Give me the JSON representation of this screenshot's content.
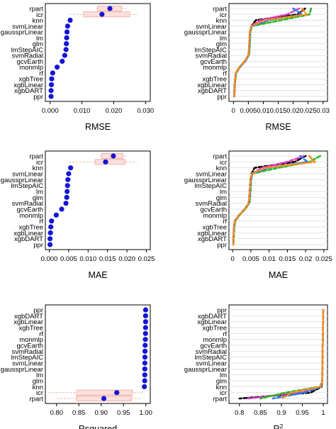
{
  "chart_data": [
    {
      "type": "scatter",
      "xlabel": "RMSE",
      "xlim": [
        -0.0015,
        0.0315
      ],
      "xticks": [
        0,
        0.01,
        0.02,
        0.03
      ],
      "xtick_labels": [
        "0.000",
        "0.010",
        "0.020",
        "0.030"
      ],
      "categories": [
        "rpart",
        "icr",
        "knn",
        "svmLinear",
        "gaussprLinear",
        "lm",
        "glm",
        "lmStepAIC",
        "svmRadial",
        "gcvEarth",
        "monmlp",
        "rf",
        "xgbTree",
        "xgbLinear",
        "xgbDART",
        "ppr"
      ],
      "values": [
        0.0188,
        0.0163,
        0.0063,
        0.0055,
        0.0053,
        0.0052,
        0.0051,
        0.005,
        0.0046,
        0.0038,
        0.0022,
        0.0008,
        0.0005,
        0.0004,
        0.0003,
        0.0003
      ],
      "interval_low": [
        0.015,
        0.0105,
        null,
        null,
        null,
        null,
        null,
        null,
        null,
        null,
        null,
        null,
        null,
        null,
        null,
        null
      ],
      "interval_high": [
        0.0225,
        0.025,
        null,
        null,
        null,
        null,
        null,
        null,
        null,
        null,
        null,
        null,
        null,
        null,
        null,
        null
      ],
      "whisker_low": [
        0.0145,
        0.006,
        null,
        null,
        null,
        null,
        null,
        null,
        null,
        null,
        null,
        null,
        null,
        null,
        null,
        null
      ],
      "whisker_high": [
        0.024,
        0.0275,
        null,
        null,
        null,
        null,
        null,
        null,
        null,
        null,
        null,
        null,
        null,
        null,
        null,
        null
      ],
      "point_color": "#1515d5",
      "box_color": "#f4b0a8"
    },
    {
      "type": "line",
      "xlabel": "RMSE",
      "xlim": [
        -0.0015,
        0.0315
      ],
      "xticks": [
        0,
        0.005,
        0.01,
        0.015,
        0.02,
        0.025,
        0.03
      ],
      "xtick_labels": [
        "0",
        "0.005",
        "0.01",
        "0.015",
        "0.02",
        "0.025",
        "0.03"
      ],
      "categories": [
        "rpart",
        "icr",
        "knn",
        "svmLinear",
        "gaussprLinear",
        "lm",
        "glm",
        "lmStepAIC",
        "svmRadial",
        "gcvEarth",
        "monmlp",
        "rf",
        "xgbTree",
        "xgbLinear",
        "xgbDART",
        "ppr"
      ],
      "series": [
        {
          "color": "#000000",
          "values": [
            0.024,
            0.0215,
            0.0075,
            0.006,
            0.0055,
            0.0054,
            0.0053,
            0.0052,
            0.005,
            0.0038,
            0.002,
            0.0008,
            0.0006,
            0.0004,
            0.0003,
            0.0003
          ]
        },
        {
          "color": "#e23ac8",
          "values": [
            0.022,
            0.018,
            0.009,
            0.006,
            0.0056,
            0.0055,
            0.0054,
            0.0053,
            0.0051,
            0.004,
            0.0021,
            0.0009,
            0.0006,
            0.0005,
            0.0004,
            0.0003
          ]
        },
        {
          "color": "#22bb22",
          "values": [
            0.026,
            0.0255,
            0.016,
            0.0062,
            0.0057,
            0.0056,
            0.0055,
            0.0054,
            0.0052,
            0.0039,
            0.0022,
            0.0009,
            0.0007,
            0.0005,
            0.0004,
            0.0003
          ]
        },
        {
          "color": "#2a7be8",
          "values": [
            0.02,
            0.023,
            0.012,
            0.0061,
            0.0056,
            0.0055,
            0.0054,
            0.0053,
            0.0051,
            0.0039,
            0.0021,
            0.0008,
            0.0006,
            0.0004,
            0.0003,
            0.0003
          ]
        },
        {
          "color": "#ff8c1a",
          "values": [
            0.023,
            0.0245,
            0.0105,
            0.006,
            0.0055,
            0.0054,
            0.0053,
            0.0052,
            0.005,
            0.0038,
            0.002,
            0.0008,
            0.0006,
            0.0004,
            0.0003,
            0.0003
          ]
        }
      ]
    },
    {
      "type": "scatter",
      "xlabel": "MAE",
      "xlim": [
        -0.001,
        0.026
      ],
      "xticks": [
        0,
        0.005,
        0.01,
        0.015,
        0.02,
        0.025
      ],
      "xtick_labels": [
        "0.000",
        "0.005",
        "0.010",
        "0.015",
        "0.020",
        "0.025"
      ],
      "categories": [
        "rpart",
        "icr",
        "knn",
        "svmLinear",
        "gaussprLinear",
        "lmStepAIC",
        "lm",
        "glm",
        "svmRadial",
        "gcvEarth",
        "monmlp",
        "rf",
        "xgbTree",
        "xgbLinear",
        "xgbDART",
        "ppr"
      ],
      "values": [
        0.0165,
        0.0145,
        0.0055,
        0.005,
        0.0048,
        0.0047,
        0.0046,
        0.0045,
        0.0043,
        0.0032,
        0.0018,
        0.0006,
        0.0004,
        0.0003,
        0.0002,
        0.0002
      ],
      "interval_low": [
        0.0135,
        0.0118,
        null,
        null,
        null,
        null,
        null,
        null,
        null,
        null,
        null,
        null,
        null,
        null,
        null,
        null
      ],
      "interval_high": [
        0.019,
        0.0195,
        null,
        null,
        null,
        null,
        null,
        null,
        null,
        null,
        null,
        null,
        null,
        null,
        null,
        null
      ],
      "whisker_low": [
        0.013,
        0.005,
        null,
        null,
        null,
        null,
        null,
        null,
        null,
        null,
        null,
        null,
        null,
        null,
        null,
        null
      ],
      "whisker_high": [
        0.02,
        0.0225,
        null,
        null,
        null,
        null,
        null,
        null,
        null,
        null,
        null,
        null,
        null,
        null,
        null,
        null
      ],
      "point_color": "#1515d5",
      "box_color": "#f4b0a8"
    },
    {
      "type": "line",
      "xlabel": "MAE",
      "xlim": [
        -0.001,
        0.026
      ],
      "xticks": [
        0,
        0.005,
        0.01,
        0.015,
        0.02,
        0.025
      ],
      "xtick_labels": [
        "0",
        "0.005",
        "0.01",
        "0.015",
        "0.02",
        "0.025"
      ],
      "categories": [
        "rpart",
        "icr",
        "knn",
        "svmLinear",
        "gaussprLinear",
        "lmStepAIC",
        "lm",
        "glm",
        "svmRadial",
        "gcvEarth",
        "monmlp",
        "rf",
        "xgbTree",
        "xgbLinear",
        "xgbDART",
        "ppr"
      ],
      "series": [
        {
          "color": "#000000",
          "values": [
            0.02,
            0.017,
            0.006,
            0.0052,
            0.0049,
            0.0048,
            0.0047,
            0.0046,
            0.0044,
            0.0033,
            0.0018,
            0.0006,
            0.0004,
            0.0003,
            0.0002,
            0.0002
          ]
        },
        {
          "color": "#e23ac8",
          "values": [
            0.0195,
            0.015,
            0.008,
            0.0053,
            0.005,
            0.0049,
            0.0048,
            0.0047,
            0.0045,
            0.0034,
            0.0019,
            0.0007,
            0.0005,
            0.0003,
            0.0002,
            0.0002
          ]
        },
        {
          "color": "#22bb22",
          "values": [
            0.024,
            0.021,
            0.0125,
            0.0054,
            0.0051,
            0.005,
            0.0049,
            0.0048,
            0.0046,
            0.0034,
            0.0019,
            0.0007,
            0.0005,
            0.0004,
            0.0003,
            0.0002
          ]
        },
        {
          "color": "#2a7be8",
          "values": [
            0.0185,
            0.0205,
            0.01,
            0.0053,
            0.005,
            0.0049,
            0.0048,
            0.0047,
            0.0045,
            0.0033,
            0.0018,
            0.0006,
            0.0004,
            0.0003,
            0.0002,
            0.0002
          ]
        },
        {
          "color": "#ff8c1a",
          "values": [
            0.021,
            0.0225,
            0.009,
            0.0052,
            0.0049,
            0.0048,
            0.0047,
            0.0046,
            0.0044,
            0.0033,
            0.0018,
            0.0006,
            0.0004,
            0.0003,
            0.0002,
            0.0002
          ]
        }
      ]
    },
    {
      "type": "scatter",
      "xlabel": "Rsquared",
      "xlim": [
        0.775,
        1.01
      ],
      "xticks": [
        0.8,
        0.85,
        0.9,
        0.95,
        1.0
      ],
      "xtick_labels": [
        "0.80",
        "0.85",
        "0.90",
        "0.95",
        "1.00"
      ],
      "categories": [
        "ppr",
        "xgbDART",
        "xgbLinear",
        "xgbTree",
        "rf",
        "monmlp",
        "gcvEarth",
        "svmRadial",
        "lmStepAIC",
        "svmLinear",
        "gaussprLinear",
        "lm",
        "glm",
        "knn",
        "icr",
        "rpart"
      ],
      "values": [
        0.9996,
        0.9995,
        0.9995,
        0.9994,
        0.9993,
        0.999,
        0.9985,
        0.9982,
        0.998,
        0.9979,
        0.9978,
        0.9977,
        0.9976,
        0.9968,
        0.935,
        0.906
      ],
      "interval_low": [
        null,
        null,
        null,
        null,
        null,
        null,
        null,
        null,
        null,
        null,
        null,
        null,
        null,
        null,
        0.845,
        0.845
      ],
      "interval_high": [
        null,
        null,
        null,
        null,
        null,
        null,
        null,
        null,
        null,
        null,
        null,
        null,
        null,
        null,
        0.97,
        0.968
      ],
      "whisker_low": [
        null,
        null,
        null,
        null,
        null,
        null,
        null,
        null,
        null,
        null,
        null,
        null,
        null,
        null,
        0.782,
        0.8
      ],
      "whisker_high": [
        null,
        null,
        null,
        null,
        null,
        null,
        null,
        null,
        null,
        null,
        null,
        null,
        null,
        null,
        0.995,
        0.99
      ],
      "point_color": "#1515d5",
      "box_color": "#f4b0a8"
    },
    {
      "type": "line",
      "xlabel": "R",
      "xlabel_sup": "2",
      "xlim": [
        0.775,
        1.01
      ],
      "xticks": [
        0.8,
        0.85,
        0.9,
        0.95,
        1.0
      ],
      "xtick_labels": [
        "0.8",
        "0.85",
        "0.9",
        "0.95",
        "1"
      ],
      "categories": [
        "ppr",
        "xgbDART",
        "xgbLinear",
        "xgbTree",
        "rf",
        "monmlp",
        "gcvEarth",
        "svmRadial",
        "lmStepAIC",
        "svmLinear",
        "gaussprLinear",
        "lm",
        "glm",
        "knn",
        "icr",
        "rpart"
      ],
      "series": [
        {
          "color": "#000000",
          "values": [
            0.9996,
            0.9995,
            0.9995,
            0.9994,
            0.9993,
            0.9991,
            0.9986,
            0.9983,
            0.9981,
            0.998,
            0.9979,
            0.9978,
            0.9977,
            0.996,
            0.97,
            0.8
          ]
        },
        {
          "color": "#e23ac8",
          "values": [
            0.9996,
            0.9995,
            0.9995,
            0.9994,
            0.9993,
            0.999,
            0.9985,
            0.9982,
            0.998,
            0.9979,
            0.9978,
            0.9977,
            0.9975,
            0.994,
            0.94,
            0.82
          ]
        },
        {
          "color": "#22bb22",
          "values": [
            0.9995,
            0.9994,
            0.9994,
            0.9993,
            0.9992,
            0.9989,
            0.9984,
            0.9981,
            0.9979,
            0.9978,
            0.9977,
            0.9976,
            0.9974,
            0.992,
            0.91,
            0.85
          ]
        },
        {
          "color": "#2a7be8",
          "values": [
            0.9996,
            0.9995,
            0.9995,
            0.9994,
            0.9993,
            0.999,
            0.9985,
            0.9982,
            0.998,
            0.9979,
            0.9978,
            0.9977,
            0.9976,
            0.995,
            0.955,
            0.88
          ]
        },
        {
          "color": "#ff8c1a",
          "values": [
            0.9996,
            0.9995,
            0.9995,
            0.9994,
            0.9993,
            0.999,
            0.9985,
            0.9982,
            0.998,
            0.9979,
            0.9978,
            0.9977,
            0.9976,
            0.993,
            0.925,
            0.9
          ]
        }
      ]
    }
  ]
}
